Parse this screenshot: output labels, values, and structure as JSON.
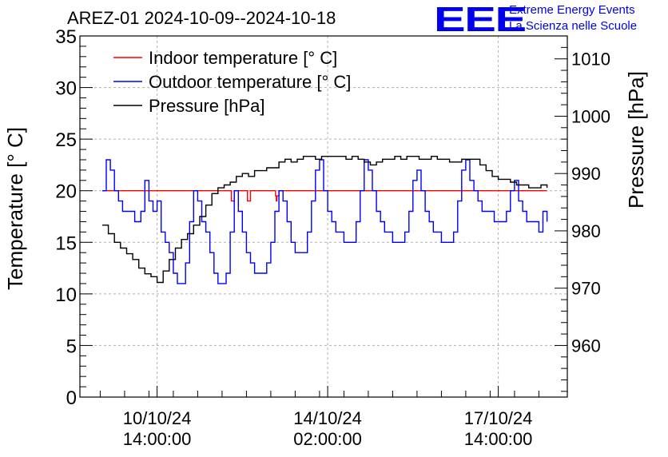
{
  "header": {
    "title": "AREZ-01 2024-10-09--2024-10-18",
    "logo": "EEE",
    "brand_line1": "Extreme Energy Events",
    "brand_line2": "La Scienza nelle Scuole",
    "brand_color": "#0000ee"
  },
  "chart_data": {
    "type": "line",
    "title": "AREZ-01 2024-10-09--2024-10-18",
    "xlabel": "",
    "ylabel": "Temperature [° C]",
    "y2label": "Pressure [hPa]",
    "grid": true,
    "legend_position": "top-left",
    "x_unit": "hours since 2024-10-09 00:00",
    "xlim": [
      0,
      240
    ],
    "ylim": [
      0,
      35
    ],
    "y2lim": [
      951,
      1014
    ],
    "x_ticks": [
      {
        "x": 38,
        "line1": "10/10/24",
        "line2": "14:00:00"
      },
      {
        "x": 122,
        "line1": "14/10/24",
        "line2": "02:00:00"
      },
      {
        "x": 206,
        "line1": "17/10/24",
        "line2": "14:00:00"
      }
    ],
    "y_ticks": [
      0,
      5,
      10,
      15,
      20,
      25,
      30,
      35
    ],
    "y2_ticks": [
      960,
      970,
      980,
      990,
      1000,
      1010
    ],
    "series": [
      {
        "name": "Indoor temperature [° C]",
        "axis": "left",
        "color": "#ff0000",
        "x": [
          11,
          74,
          74.6,
          75.4,
          76,
          82,
          82.5,
          83,
          83.5,
          84,
          96,
          96.3,
          96.7,
          97,
          98,
          230
        ],
        "values": [
          20,
          20,
          19,
          19,
          20,
          20,
          19,
          19,
          19,
          20,
          20,
          19.5,
          19,
          19.5,
          20,
          20
        ]
      },
      {
        "name": "Outdoor temperature [° C]",
        "axis": "left",
        "color": "#0000ff",
        "x": [
          11,
          13,
          15,
          17,
          19,
          21,
          23,
          25,
          27,
          30,
          32,
          34,
          36,
          38,
          40,
          42,
          44,
          46,
          48,
          50,
          52,
          54,
          56,
          58,
          60,
          62,
          64,
          66,
          68,
          70,
          72,
          74,
          76,
          78,
          80,
          82,
          84,
          86,
          88,
          90,
          92,
          94,
          96,
          98,
          100,
          102,
          104,
          106,
          108,
          110,
          112,
          114,
          116,
          118,
          120,
          122,
          124,
          126,
          128,
          130,
          132,
          134,
          136,
          138,
          140,
          142,
          144,
          146,
          148,
          150,
          152,
          154,
          156,
          158,
          160,
          162,
          164,
          166,
          168,
          170,
          172,
          174,
          176,
          178,
          180,
          182,
          184,
          186,
          188,
          190,
          192,
          194,
          196,
          198,
          200,
          202,
          204,
          206,
          208,
          210,
          212,
          214,
          216,
          218,
          220,
          222,
          224,
          226,
          228,
          230
        ],
        "values": [
          20,
          23,
          22,
          20,
          19,
          18,
          18,
          18,
          17,
          18,
          21,
          19,
          18,
          19,
          16,
          15,
          14,
          12,
          11,
          11,
          13,
          17,
          20,
          19,
          17,
          16,
          14,
          12,
          11,
          11,
          12,
          16,
          20,
          18,
          16,
          14,
          13,
          12,
          12,
          12,
          13,
          15,
          18,
          20,
          19,
          17,
          15,
          14,
          14,
          14,
          16,
          19,
          22,
          23,
          20,
          18,
          17,
          16,
          16,
          15,
          15,
          15,
          17,
          20,
          23,
          22,
          20,
          18,
          17,
          16,
          16,
          15,
          15,
          15,
          16,
          18,
          21,
          22,
          20,
          18,
          17,
          16,
          16,
          15,
          15,
          15,
          16,
          19,
          22,
          23,
          21,
          20,
          19,
          18,
          18,
          18,
          17,
          17,
          17,
          18,
          20,
          21,
          19,
          18,
          17,
          17,
          17,
          16,
          18,
          17
        ]
      },
      {
        "name": "Pressure [hPa]",
        "axis": "right",
        "color": "#000000",
        "x": [
          11,
          14,
          17,
          20,
          23,
          26,
          29,
          32,
          35,
          38,
          41,
          44,
          47,
          50,
          53,
          56,
          59,
          62,
          65,
          68,
          71,
          74,
          77,
          80,
          83,
          86,
          89,
          92,
          95,
          98,
          101,
          104,
          107,
          110,
          113,
          116,
          119,
          122,
          125,
          128,
          131,
          134,
          137,
          140,
          143,
          146,
          149,
          152,
          155,
          158,
          161,
          164,
          167,
          170,
          173,
          176,
          179,
          182,
          185,
          188,
          191,
          194,
          197,
          200,
          203,
          206,
          209,
          212,
          215,
          218,
          221,
          224,
          227,
          230
        ],
        "values": [
          981,
          979.5,
          978,
          977,
          976,
          975,
          973.5,
          972.5,
          972,
          971,
          973,
          975,
          977,
          978.5,
          979.5,
          981,
          982.5,
          984.5,
          986.5,
          987.5,
          988,
          988.5,
          989.5,
          990,
          989.5,
          990.5,
          990.5,
          991,
          991,
          992,
          992.5,
          992,
          992.5,
          993,
          993,
          992.5,
          993,
          993,
          993,
          993,
          992.5,
          993,
          992.5,
          992,
          991.5,
          992,
          992.5,
          992.5,
          993,
          992.5,
          993,
          993,
          992.5,
          992.5,
          993,
          992.5,
          992.5,
          992,
          992,
          992.5,
          992.5,
          992.5,
          991.5,
          990.5,
          989.5,
          989,
          989,
          988.5,
          988,
          988,
          987.5,
          987.5,
          988,
          987.5
        ]
      }
    ]
  }
}
